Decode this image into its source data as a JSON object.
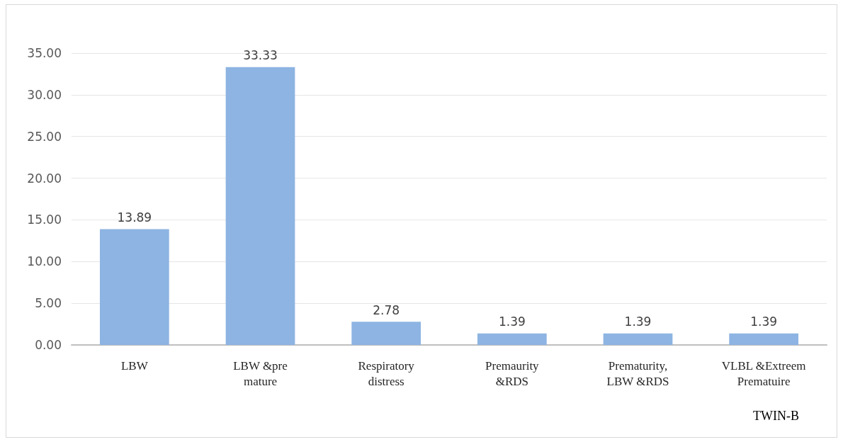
{
  "chart_data": {
    "type": "bar",
    "title": "TWIN-B",
    "categories": [
      "LBW",
      "LBW &pre\nmature",
      "Respiratory\ndistress",
      "Premaurity\n&RDS",
      "Prematurity,\nLBW &RDS",
      "VLBL &Extreem\nPrematuire"
    ],
    "values": [
      13.89,
      33.33,
      2.78,
      1.39,
      1.39,
      1.39
    ],
    "color": "#8db4e2",
    "ylim": [
      0,
      35
    ],
    "yticks": [
      {
        "value": 0,
        "label": "0.00"
      },
      {
        "value": 5,
        "label": "5.00"
      },
      {
        "value": 10,
        "label": "10.00"
      },
      {
        "value": 15,
        "label": "15.00"
      },
      {
        "value": 20,
        "label": "20.00"
      },
      {
        "value": 25,
        "label": "25.00"
      },
      {
        "value": 30,
        "label": "30.00"
      },
      {
        "value": 35,
        "label": "35.00"
      }
    ],
    "grid": "y",
    "data_labels": true
  }
}
